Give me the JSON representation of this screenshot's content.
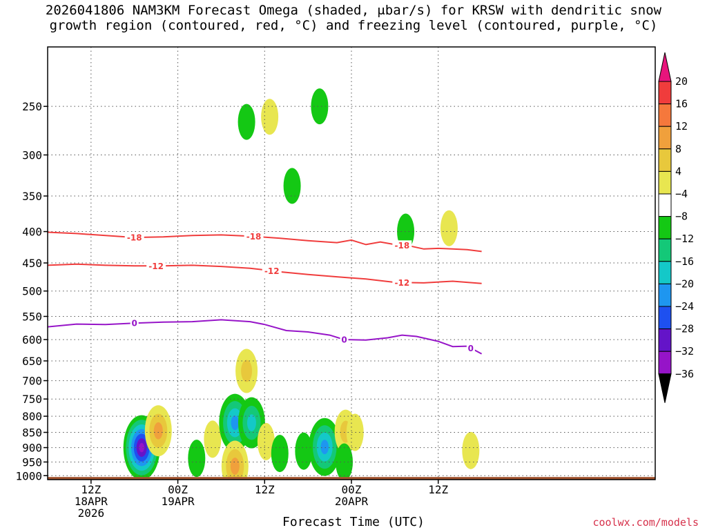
{
  "chart_data": {
    "type": "heatmap",
    "title_line1": "2026041806 NAM3KM Forecast Omega (shaded, μbar/s) for KRSW with dendritic snow",
    "title_line2": "growth region (contoured, red, °C) and freezing level (contoured, purple, °C)",
    "xlabel": "Forecast Time (UTC)",
    "credit": "coolwx.com/models",
    "x_range_hours": [
      0,
      84
    ],
    "y_axis": {
      "scale": "log",
      "range_mb": [
        1015,
        200
      ],
      "reversed": true,
      "ticks": [
        250,
        300,
        350,
        400,
        450,
        500,
        550,
        600,
        650,
        700,
        750,
        800,
        850,
        900,
        950,
        1000
      ]
    },
    "x_ticks": [
      {
        "hour": 6,
        "line1": "12Z",
        "line2": "18APR",
        "line3": "2026"
      },
      {
        "hour": 18,
        "line1": "00Z",
        "line2": "19APR",
        "line3": ""
      },
      {
        "hour": 30,
        "line1": "12Z",
        "line2": "",
        "line3": ""
      },
      {
        "hour": 42,
        "line1": "00Z",
        "line2": "20APR",
        "line3": ""
      },
      {
        "hour": 54,
        "line1": "12Z",
        "line2": "",
        "line3": ""
      }
    ],
    "grid": "dotted",
    "colorbar": {
      "labels": [
        "20",
        "16",
        "12",
        "8",
        "4",
        "−4",
        "−8",
        "−12",
        "−16",
        "−20",
        "−24",
        "−28",
        "−32",
        "−36"
      ],
      "colors": [
        "#e8147c",
        "#f03c3c",
        "#f5783c",
        "#f0a03c",
        "#e8c83c",
        "#e8e650",
        "#ffffff",
        "#14c814",
        "#14c878",
        "#14c8c8",
        "#1e96f0",
        "#1e50f0",
        "#6414c8",
        "#9614c8",
        "#aaaaaa",
        "#000000"
      ]
    },
    "temperature_contours": [
      {
        "value": -18,
        "label": "-18",
        "color": "#f03c3c",
        "labels_at_hours": [
          12,
          28.5,
          49
        ],
        "points": [
          [
            0,
            401
          ],
          [
            4,
            403
          ],
          [
            8,
            406
          ],
          [
            12,
            409
          ],
          [
            16,
            408
          ],
          [
            20,
            406
          ],
          [
            24,
            405
          ],
          [
            28,
            407
          ],
          [
            32,
            410
          ],
          [
            36,
            414
          ],
          [
            40,
            417
          ],
          [
            42,
            413
          ],
          [
            44,
            420
          ],
          [
            46,
            416
          ],
          [
            48,
            420
          ],
          [
            50,
            422
          ],
          [
            52,
            427
          ],
          [
            54,
            426
          ],
          [
            56,
            427
          ],
          [
            58,
            428
          ],
          [
            60,
            431
          ]
        ]
      },
      {
        "value": -12,
        "label": "-12",
        "color": "#f03c3c",
        "labels_at_hours": [
          15,
          31,
          49
        ],
        "points": [
          [
            0,
            454
          ],
          [
            4,
            452
          ],
          [
            8,
            454
          ],
          [
            12,
            455
          ],
          [
            16,
            455
          ],
          [
            20,
            454
          ],
          [
            24,
            456
          ],
          [
            28,
            459
          ],
          [
            32,
            465
          ],
          [
            36,
            470
          ],
          [
            40,
            474
          ],
          [
            44,
            478
          ],
          [
            48,
            484
          ],
          [
            52,
            485
          ],
          [
            56,
            482
          ],
          [
            60,
            486
          ]
        ]
      },
      {
        "value": 0,
        "label": "0",
        "color": "#9614c8",
        "labels_at_hours": [
          12,
          41,
          58.5
        ],
        "points": [
          [
            0,
            572
          ],
          [
            4,
            566
          ],
          [
            8,
            567
          ],
          [
            12,
            564
          ],
          [
            16,
            562
          ],
          [
            20,
            561
          ],
          [
            24,
            557
          ],
          [
            28,
            561
          ],
          [
            30,
            567
          ],
          [
            33,
            580
          ],
          [
            36,
            583
          ],
          [
            39,
            590
          ],
          [
            41,
            600
          ],
          [
            44,
            601
          ],
          [
            47,
            596
          ],
          [
            49,
            590
          ],
          [
            51,
            593
          ],
          [
            54,
            604
          ],
          [
            56,
            616
          ],
          [
            58,
            615
          ],
          [
            60,
            633
          ]
        ]
      }
    ],
    "omega_cells": [
      {
        "hour": 13,
        "mb": 900,
        "value": -30
      },
      {
        "hour": 15.3,
        "mb": 845,
        "value": 12
      },
      {
        "hour": 20.6,
        "mb": 937,
        "value": -7
      },
      {
        "hour": 22.8,
        "mb": 872,
        "value": 5
      },
      {
        "hour": 25.9,
        "mb": 820,
        "value": -16
      },
      {
        "hour": 25.9,
        "mb": 965,
        "value": 14
      },
      {
        "hour": 27.5,
        "mb": 675,
        "value": 10
      },
      {
        "hour": 28.2,
        "mb": 820,
        "value": -14
      },
      {
        "hour": 30.2,
        "mb": 880,
        "value": 5
      },
      {
        "hour": 32.1,
        "mb": 920,
        "value": -7
      },
      {
        "hour": 35.4,
        "mb": 912,
        "value": -7
      },
      {
        "hour": 38.3,
        "mb": 898,
        "value": -18
      },
      {
        "hour": 41.2,
        "mb": 848,
        "value": 8
      },
      {
        "hour": 42.5,
        "mb": 850,
        "value": 5
      },
      {
        "hour": 41.0,
        "mb": 950,
        "value": -7
      },
      {
        "hour": 27.5,
        "mb": 265,
        "value": -7
      },
      {
        "hour": 30.7,
        "mb": 260,
        "value": 5
      },
      {
        "hour": 33.8,
        "mb": 337,
        "value": -7
      },
      {
        "hour": 37.6,
        "mb": 250,
        "value": -7
      },
      {
        "hour": 49.5,
        "mb": 400,
        "value": -7
      },
      {
        "hour": 55.5,
        "mb": 395,
        "value": 5
      },
      {
        "hour": 58.5,
        "mb": 910,
        "value": 5
      }
    ]
  }
}
